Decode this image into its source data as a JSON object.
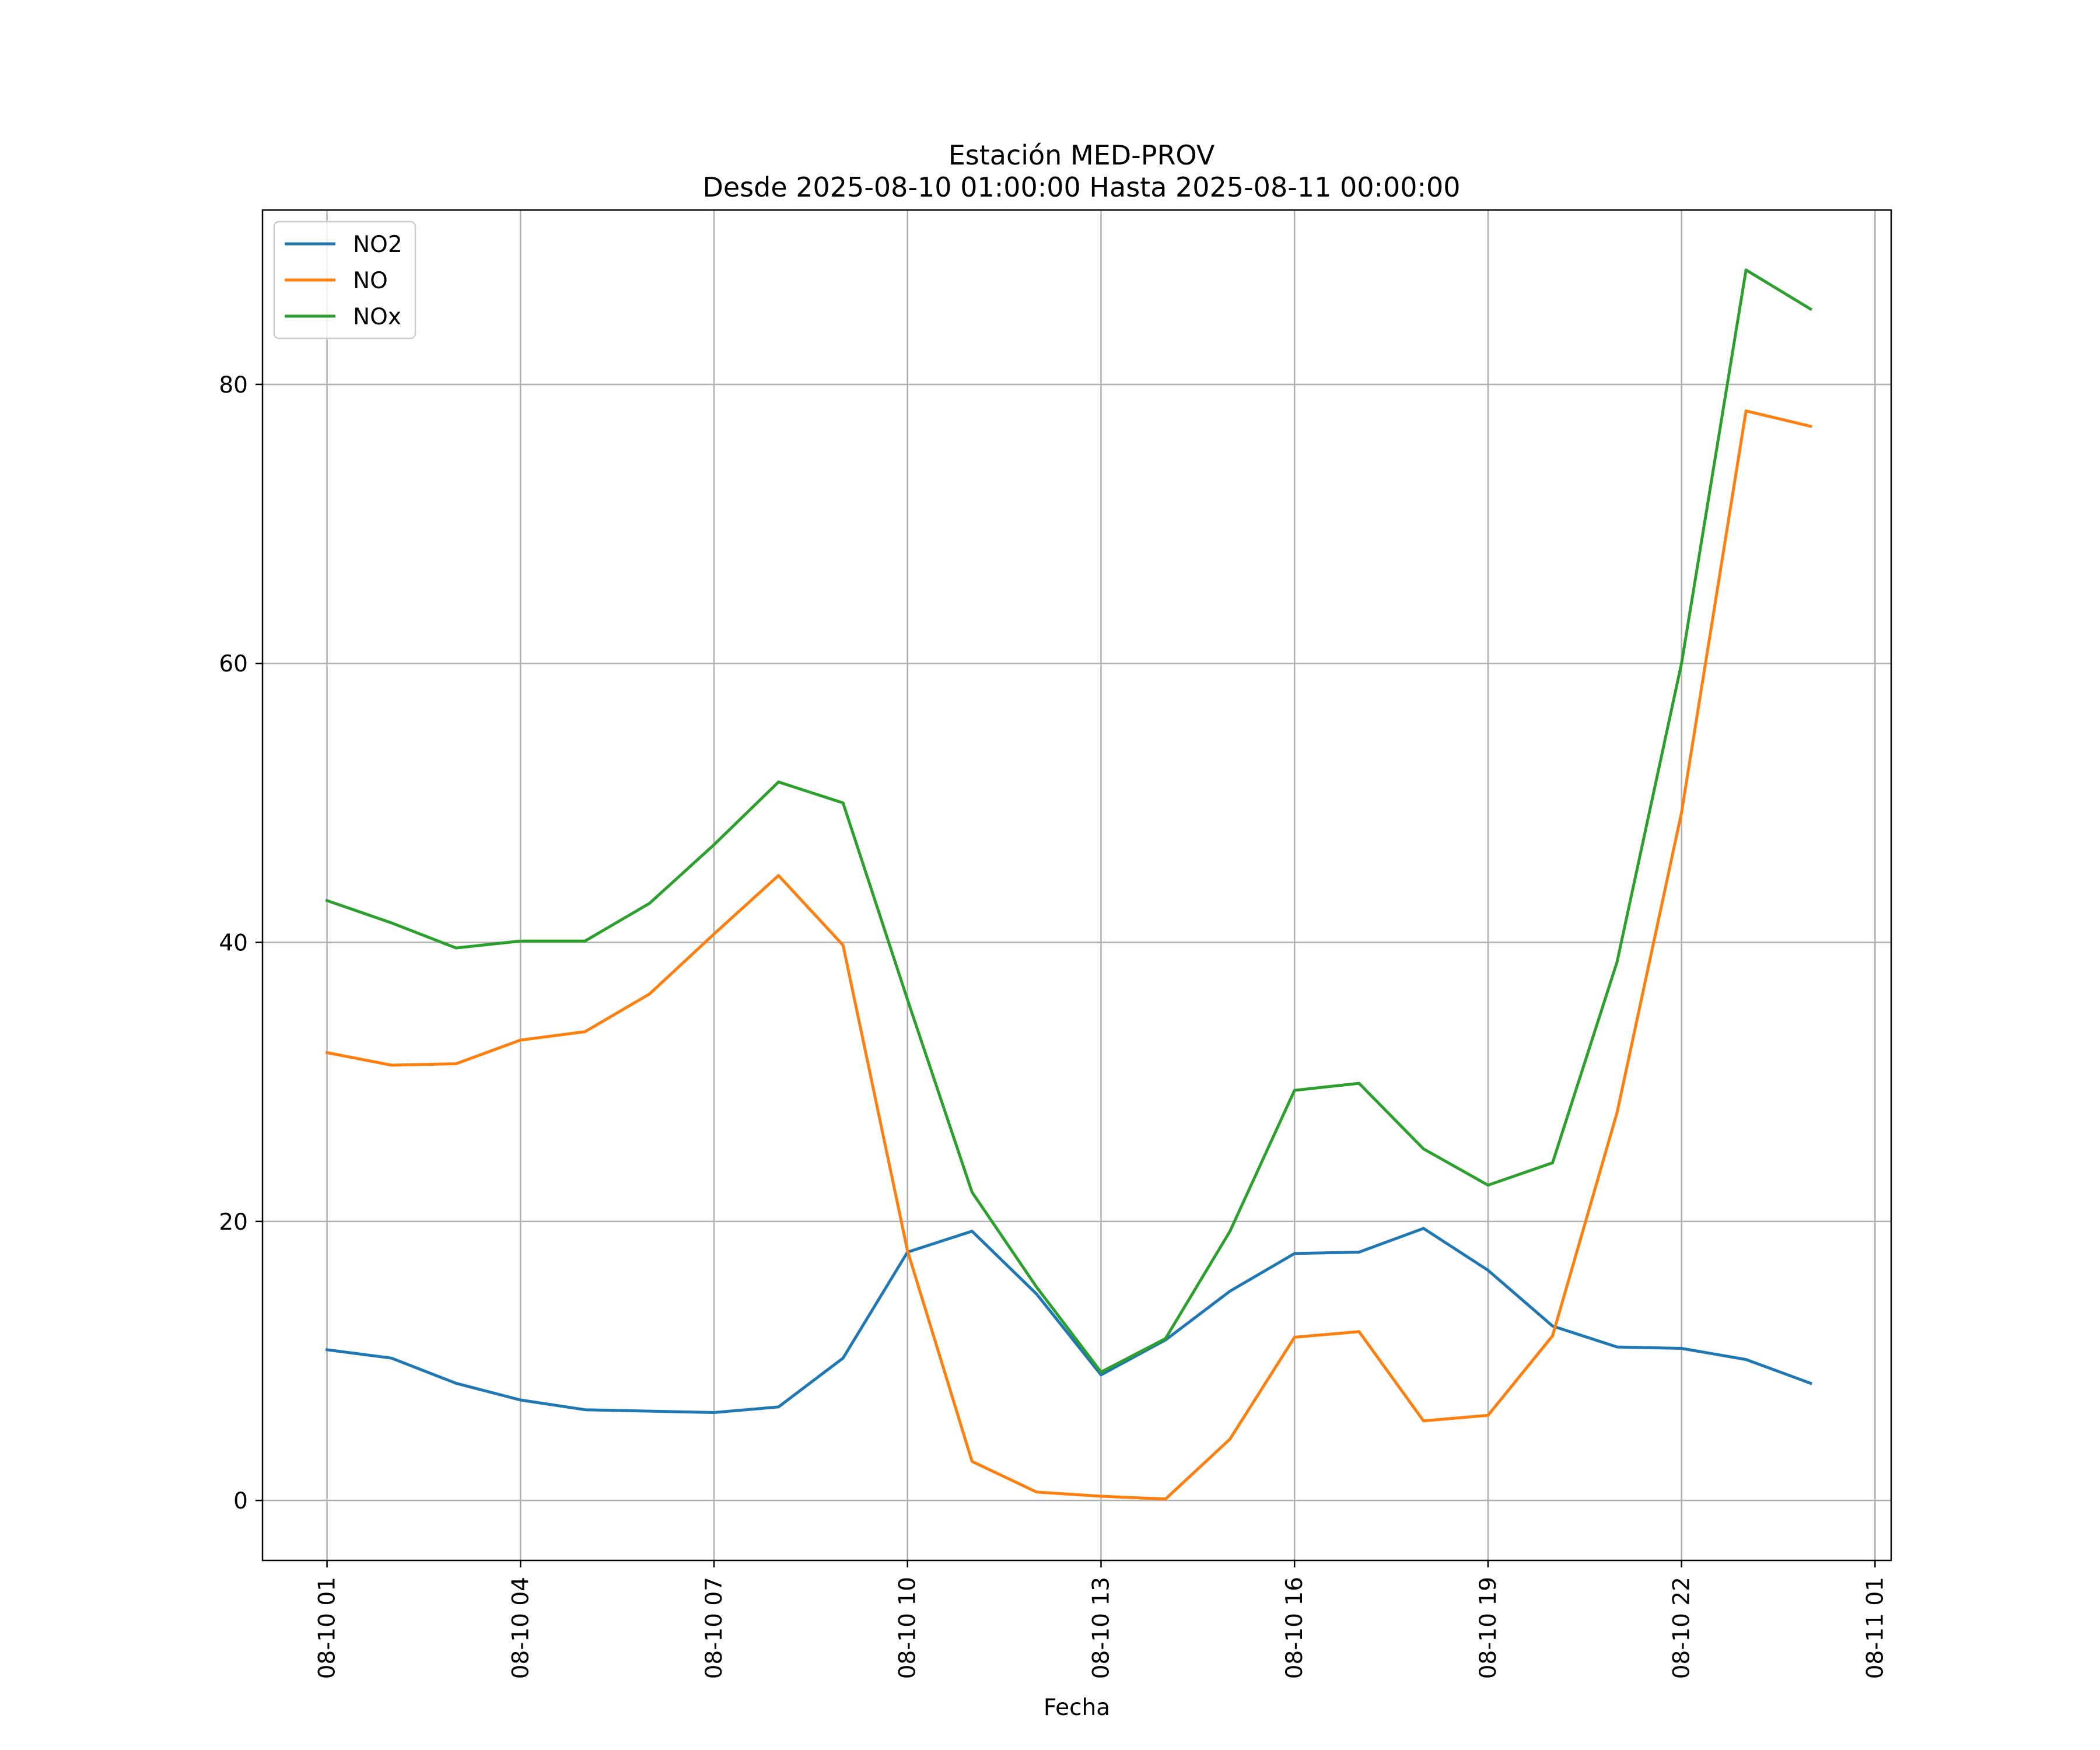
{
  "chart_data": {
    "type": "line",
    "title": "Estación MED-PROV",
    "subtitle": "Desde 2025-08-10 01:00:00 Hasta 2025-08-11 00:00:00",
    "xlabel": "Fecha",
    "ylabel": "",
    "grid": true,
    "legend_position": "top-left",
    "xlim": [
      "2025-08-10 00:00",
      "2025-08-11 01:15"
    ],
    "ylim": [
      -4.3,
      92.5
    ],
    "y_ticks": [
      0,
      20,
      40,
      60,
      80
    ],
    "x_ticks": [
      {
        "value": "2025-08-10 01:00",
        "label": "08-10 01"
      },
      {
        "value": "2025-08-10 04:00",
        "label": "08-10 04"
      },
      {
        "value": "2025-08-10 07:00",
        "label": "08-10 07"
      },
      {
        "value": "2025-08-10 10:00",
        "label": "08-10 10"
      },
      {
        "value": "2025-08-10 13:00",
        "label": "08-10 13"
      },
      {
        "value": "2025-08-10 16:00",
        "label": "08-10 16"
      },
      {
        "value": "2025-08-10 19:00",
        "label": "08-10 19"
      },
      {
        "value": "2025-08-10 22:00",
        "label": "08-10 22"
      },
      {
        "value": "2025-08-11 01:00",
        "label": "08-11 01"
      }
    ],
    "x": [
      "2025-08-10 01:00",
      "2025-08-10 02:00",
      "2025-08-10 03:00",
      "2025-08-10 04:00",
      "2025-08-10 05:00",
      "2025-08-10 06:00",
      "2025-08-10 07:00",
      "2025-08-10 08:00",
      "2025-08-10 09:00",
      "2025-08-10 10:00",
      "2025-08-10 11:00",
      "2025-08-10 12:00",
      "2025-08-10 13:00",
      "2025-08-10 14:00",
      "2025-08-10 15:00",
      "2025-08-10 16:00",
      "2025-08-10 17:00",
      "2025-08-10 18:00",
      "2025-08-10 19:00",
      "2025-08-10 20:00",
      "2025-08-10 21:00",
      "2025-08-10 22:00",
      "2025-08-10 23:00",
      "2025-08-11 00:00"
    ],
    "series": [
      {
        "name": "NO2",
        "color": "#1f77b4",
        "values": [
          10.8,
          10.2,
          8.4,
          7.2,
          6.5,
          6.4,
          6.3,
          6.7,
          10.2,
          17.8,
          19.3,
          14.8,
          9.0,
          11.5,
          15.0,
          17.7,
          17.8,
          19.5,
          16.5,
          12.5,
          11.0,
          10.9,
          10.1,
          8.4
        ]
      },
      {
        "name": "NO",
        "color": "#ff7f0e",
        "values": [
          32.1,
          31.2,
          31.3,
          33.0,
          33.6,
          36.3,
          40.6,
          44.8,
          39.8,
          17.9,
          2.8,
          0.6,
          0.3,
          0.1,
          4.4,
          11.7,
          12.1,
          5.7,
          6.1,
          11.8,
          27.8,
          49.3,
          78.1,
          77.0
        ]
      },
      {
        "name": "NOx",
        "color": "#2ca02c",
        "values": [
          43.0,
          41.4,
          39.6,
          40.1,
          40.1,
          42.8,
          47.0,
          51.5,
          50.0,
          35.9,
          22.1,
          15.3,
          9.2,
          11.6,
          19.3,
          29.4,
          29.9,
          25.2,
          22.6,
          24.2,
          38.6,
          60.0,
          88.2,
          85.4
        ]
      }
    ]
  }
}
